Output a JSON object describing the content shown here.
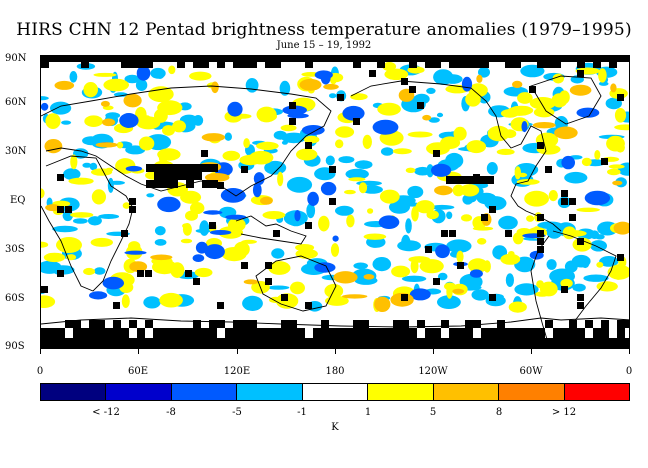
{
  "title": "HIRS CHN 12 Pentad brightness temperature anomalies (1979–1995)",
  "subtitle": "June 15 – 19, 1992",
  "lat_labels": [
    "90N",
    "60N",
    "30N",
    "EQ",
    "30S",
    "60S",
    "90S"
  ],
  "lon_labels": [
    "0",
    "60E",
    "120E",
    "180",
    "120W",
    "60W",
    "0"
  ],
  "colorbar": {
    "colors": [
      "#00007f",
      "#0000cc",
      "#005aff",
      "#00c0ff",
      "#ffffff",
      "#ffff00",
      "#ffc000",
      "#ff8000",
      "#ff0000"
    ],
    "labels": [
      "< -12",
      "-8",
      "-5",
      "-1",
      "1",
      "5",
      "8",
      "> 12"
    ],
    "units": "K"
  },
  "colors": {
    "missing": "#000000",
    "cool": "#00c0ff",
    "cooler": "#005aff",
    "warm": "#ffff00",
    "warmer": "#ffc000",
    "coast": "#000000"
  }
}
